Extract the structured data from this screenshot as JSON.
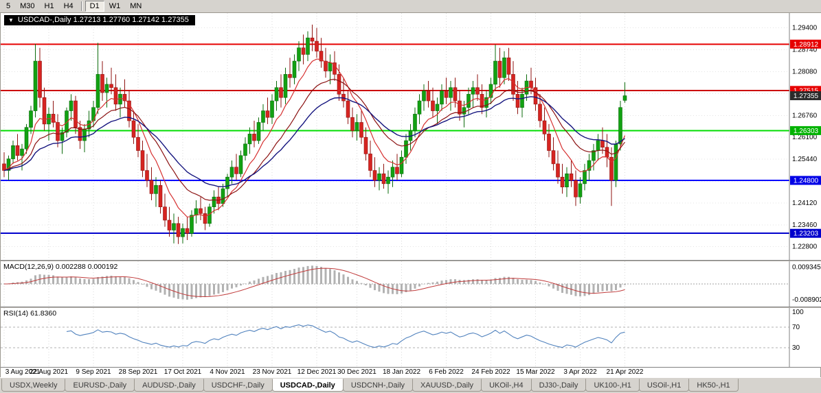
{
  "toolbar": {
    "timeframes": [
      {
        "label": "5",
        "active": false,
        "sep_after": false
      },
      {
        "label": "M30",
        "active": false,
        "sep_after": false
      },
      {
        "label": "H1",
        "active": false,
        "sep_after": false
      },
      {
        "label": "H4",
        "active": false,
        "sep_after": true
      },
      {
        "label": "D1",
        "active": true,
        "sep_after": false
      },
      {
        "label": "W1",
        "active": false,
        "sep_after": false
      },
      {
        "label": "MN",
        "active": false,
        "sep_after": false
      }
    ]
  },
  "chart_title": "USDCAD-,Daily 1.27213 1.27760 1.27142 1.27355",
  "collapse_arrow": "▼",
  "price_axis": {
    "labels": [
      "1.29400",
      "1.28740",
      "1.28080",
      "1.27420",
      "1.26760",
      "1.26100",
      "1.25440",
      "1.24780",
      "1.24120",
      "1.23460",
      "1.22800"
    ],
    "badges": [
      {
        "value": "1.28912",
        "price": 1.28912,
        "color": "#e60000",
        "text": "#ffffff"
      },
      {
        "value": "1.27515",
        "price": 1.27515,
        "color": "#e60000",
        "text": "#ffffff"
      },
      {
        "value": "1.27355",
        "price": 1.27355,
        "color": "#2b2b2b",
        "text": "#ffffff"
      },
      {
        "value": "1.26303",
        "price": 1.26303,
        "color": "#00b300",
        "text": "#ffffff"
      },
      {
        "value": "1.24800",
        "price": 1.248,
        "color": "#0000e6",
        "text": "#ffffff"
      },
      {
        "value": "1.23203",
        "price": 1.23203,
        "color": "#0000cc",
        "text": "#ffffff"
      }
    ]
  },
  "chart_data": {
    "type": "candlestick",
    "symbol": "USDCAD-",
    "timeframe": "Daily",
    "ohlc_display": {
      "open": "1.27213",
      "high": "1.27760",
      "low": "1.27142",
      "close": "1.27355"
    },
    "price_range": [
      1.224,
      1.2985
    ],
    "hlines": [
      {
        "price": 1.28912,
        "color": "#e60000",
        "width": 2
      },
      {
        "price": 1.27515,
        "color": "#cc0000",
        "width": 2
      },
      {
        "price": 1.26303,
        "color": "#00dd00",
        "width": 2
      },
      {
        "price": 1.248,
        "color": "#0000ff",
        "width": 2
      },
      {
        "price": 1.23203,
        "color": "#0000cd",
        "width": 2
      }
    ],
    "x_labels": [
      "3 Aug 2021",
      "22 Aug 2021",
      "9 Sep 2021",
      "28 Sep 2021",
      "17 Oct 2021",
      "4 Nov 2021",
      "23 Nov 2021",
      "12 Dec 2021",
      "30 Dec 2021",
      "18 Jan 2022",
      "6 Feb 2022",
      "24 Feb 2022",
      "15 Mar 2022",
      "3 Apr 2022",
      "21 Apr 2022"
    ],
    "candles": [
      [
        1.253,
        1.2565,
        1.249,
        1.251
      ],
      [
        1.251,
        1.2555,
        1.248,
        1.2545
      ],
      [
        1.2545,
        1.26,
        1.253,
        1.2585
      ],
      [
        1.2585,
        1.262,
        1.254,
        1.2555
      ],
      [
        1.2555,
        1.259,
        1.251,
        1.2575
      ],
      [
        1.2575,
        1.265,
        1.256,
        1.264
      ],
      [
        1.264,
        1.2705,
        1.262,
        1.269
      ],
      [
        1.269,
        1.2892,
        1.267,
        1.284
      ],
      [
        1.284,
        1.288,
        1.27,
        1.273
      ],
      [
        1.273,
        1.276,
        1.263,
        1.265
      ],
      [
        1.265,
        1.27,
        1.26,
        1.268
      ],
      [
        1.268,
        1.272,
        1.264,
        1.2655
      ],
      [
        1.2655,
        1.268,
        1.258,
        1.26
      ],
      [
        1.26,
        1.264,
        1.256,
        1.2625
      ],
      [
        1.2625,
        1.27,
        1.261,
        1.269
      ],
      [
        1.269,
        1.274,
        1.266,
        1.272
      ],
      [
        1.272,
        1.2735,
        1.262,
        1.264
      ],
      [
        1.264,
        1.266,
        1.2575,
        1.26
      ],
      [
        1.26,
        1.265,
        1.2565,
        1.2635
      ],
      [
        1.2635,
        1.269,
        1.261,
        1.266
      ],
      [
        1.266,
        1.272,
        1.264,
        1.27
      ],
      [
        1.27,
        1.2895,
        1.268,
        1.28
      ],
      [
        1.28,
        1.284,
        1.272,
        1.2745
      ],
      [
        1.2745,
        1.279,
        1.27,
        1.277
      ],
      [
        1.277,
        1.282,
        1.274,
        1.276
      ],
      [
        1.276,
        1.28,
        1.269,
        1.271
      ],
      [
        1.271,
        1.276,
        1.267,
        1.274
      ],
      [
        1.274,
        1.2785,
        1.27,
        1.272
      ],
      [
        1.272,
        1.275,
        1.264,
        1.266
      ],
      [
        1.266,
        1.269,
        1.259,
        1.261
      ],
      [
        1.261,
        1.265,
        1.255,
        1.257
      ],
      [
        1.257,
        1.26,
        1.249,
        1.251
      ],
      [
        1.251,
        1.256,
        1.246,
        1.248
      ],
      [
        1.248,
        1.252,
        1.242,
        1.244
      ],
      [
        1.244,
        1.249,
        1.24,
        1.2465
      ],
      [
        1.2465,
        1.248,
        1.238,
        1.24
      ],
      [
        1.24,
        1.244,
        1.234,
        1.236
      ],
      [
        1.236,
        1.24,
        1.231,
        1.233
      ],
      [
        1.233,
        1.238,
        1.229,
        1.235
      ],
      [
        1.235,
        1.237,
        1.2288,
        1.231
      ],
      [
        1.231,
        1.235,
        1.229,
        1.2335
      ],
      [
        1.2335,
        1.237,
        1.23,
        1.232
      ],
      [
        1.232,
        1.239,
        1.231,
        1.2375
      ],
      [
        1.2375,
        1.242,
        1.235,
        1.2395
      ],
      [
        1.2395,
        1.243,
        1.236,
        1.238
      ],
      [
        1.238,
        1.24,
        1.233,
        1.235
      ],
      [
        1.235,
        1.241,
        1.234,
        1.24
      ],
      [
        1.24,
        1.245,
        1.238,
        1.243
      ],
      [
        1.243,
        1.246,
        1.239,
        1.241
      ],
      [
        1.241,
        1.247,
        1.24,
        1.2455
      ],
      [
        1.2455,
        1.25,
        1.243,
        1.249
      ],
      [
        1.249,
        1.254,
        1.247,
        1.252
      ],
      [
        1.252,
        1.256,
        1.248,
        1.25
      ],
      [
        1.25,
        1.257,
        1.249,
        1.2555
      ],
      [
        1.2555,
        1.261,
        1.254,
        1.259
      ],
      [
        1.259,
        1.264,
        1.256,
        1.262
      ],
      [
        1.262,
        1.266,
        1.258,
        1.26
      ],
      [
        1.26,
        1.267,
        1.259,
        1.2655
      ],
      [
        1.2655,
        1.271,
        1.263,
        1.269
      ],
      [
        1.269,
        1.273,
        1.265,
        1.267
      ],
      [
        1.267,
        1.274,
        1.265,
        1.272
      ],
      [
        1.272,
        1.278,
        1.269,
        1.276
      ],
      [
        1.276,
        1.28,
        1.27,
        1.273
      ],
      [
        1.273,
        1.282,
        1.271,
        1.28
      ],
      [
        1.28,
        1.285,
        1.276,
        1.279
      ],
      [
        1.279,
        1.286,
        1.277,
        1.284
      ],
      [
        1.284,
        1.29,
        1.281,
        1.288
      ],
      [
        1.288,
        1.292,
        1.283,
        1.286
      ],
      [
        1.286,
        1.293,
        1.284,
        1.291
      ],
      [
        1.291,
        1.295,
        1.287,
        1.29
      ],
      [
        1.29,
        1.294,
        1.285,
        1.287
      ],
      [
        1.287,
        1.291,
        1.282,
        1.284
      ],
      [
        1.284,
        1.288,
        1.279,
        1.281
      ],
      [
        1.281,
        1.286,
        1.277,
        1.2835
      ],
      [
        1.2835,
        1.287,
        1.278,
        1.28
      ],
      [
        1.28,
        1.283,
        1.272,
        1.274
      ],
      [
        1.274,
        1.279,
        1.27,
        1.272
      ],
      [
        1.272,
        1.275,
        1.265,
        1.267
      ],
      [
        1.267,
        1.27,
        1.261,
        1.263
      ],
      [
        1.263,
        1.268,
        1.26,
        1.2655
      ],
      [
        1.2655,
        1.269,
        1.259,
        1.261
      ],
      [
        1.261,
        1.264,
        1.254,
        1.256
      ],
      [
        1.256,
        1.26,
        1.249,
        1.251
      ],
      [
        1.251,
        1.255,
        1.246,
        1.248
      ],
      [
        1.248,
        1.252,
        1.245,
        1.25
      ],
      [
        1.25,
        1.253,
        1.2455,
        1.247
      ],
      [
        1.247,
        1.251,
        1.244,
        1.249
      ],
      [
        1.249,
        1.254,
        1.246,
        1.252
      ],
      [
        1.252,
        1.256,
        1.248,
        1.25
      ],
      [
        1.25,
        1.257,
        1.249,
        1.255
      ],
      [
        1.255,
        1.262,
        1.253,
        1.26
      ],
      [
        1.26,
        1.265,
        1.257,
        1.263
      ],
      [
        1.263,
        1.27,
        1.261,
        1.268
      ],
      [
        1.268,
        1.274,
        1.265,
        1.272
      ],
      [
        1.272,
        1.277,
        1.269,
        1.275
      ],
      [
        1.275,
        1.278,
        1.27,
        1.272
      ],
      [
        1.272,
        1.276,
        1.267,
        1.269
      ],
      [
        1.269,
        1.273,
        1.265,
        1.271
      ],
      [
        1.271,
        1.277,
        1.269,
        1.275
      ],
      [
        1.275,
        1.279,
        1.271,
        1.273
      ],
      [
        1.273,
        1.278,
        1.269,
        1.276
      ],
      [
        1.276,
        1.279,
        1.27,
        1.272
      ],
      [
        1.272,
        1.275,
        1.266,
        1.268
      ],
      [
        1.268,
        1.272,
        1.264,
        1.27
      ],
      [
        1.27,
        1.276,
        1.268,
        1.274
      ],
      [
        1.274,
        1.278,
        1.27,
        1.276
      ],
      [
        1.276,
        1.28,
        1.272,
        1.274
      ],
      [
        1.274,
        1.277,
        1.268,
        1.27
      ],
      [
        1.27,
        1.275,
        1.267,
        1.273
      ],
      [
        1.273,
        1.279,
        1.271,
        1.277
      ],
      [
        1.277,
        1.289,
        1.275,
        1.284
      ],
      [
        1.284,
        1.288,
        1.276,
        1.279
      ],
      [
        1.279,
        1.287,
        1.277,
        1.285
      ],
      [
        1.285,
        1.288,
        1.278,
        1.28
      ],
      [
        1.28,
        1.284,
        1.272,
        1.274
      ],
      [
        1.274,
        1.278,
        1.268,
        1.27
      ],
      [
        1.27,
        1.276,
        1.267,
        1.274
      ],
      [
        1.274,
        1.28,
        1.272,
        1.278
      ],
      [
        1.278,
        1.282,
        1.274,
        1.276
      ],
      [
        1.276,
        1.279,
        1.269,
        1.271
      ],
      [
        1.271,
        1.274,
        1.264,
        1.266
      ],
      [
        1.266,
        1.27,
        1.26,
        1.262
      ],
      [
        1.262,
        1.265,
        1.255,
        1.257
      ],
      [
        1.257,
        1.261,
        1.251,
        1.253
      ],
      [
        1.253,
        1.257,
        1.247,
        1.249
      ],
      [
        1.249,
        1.253,
        1.244,
        1.246
      ],
      [
        1.246,
        1.252,
        1.243,
        1.25
      ],
      [
        1.25,
        1.254,
        1.246,
        1.248
      ],
      [
        1.248,
        1.251,
        1.2403,
        1.243
      ],
      [
        1.243,
        1.249,
        1.241,
        1.247
      ],
      [
        1.247,
        1.253,
        1.245,
        1.251
      ],
      [
        1.251,
        1.256,
        1.248,
        1.254
      ],
      [
        1.254,
        1.259,
        1.251,
        1.257
      ],
      [
        1.257,
        1.262,
        1.254,
        1.26
      ],
      [
        1.26,
        1.264,
        1.256,
        1.258
      ],
      [
        1.258,
        1.262,
        1.252,
        1.255
      ],
      [
        1.255,
        1.258,
        1.2403,
        1.248
      ],
      [
        1.248,
        1.26,
        1.246,
        1.259
      ],
      [
        1.259,
        1.272,
        1.257,
        1.27
      ],
      [
        1.27213,
        1.2776,
        1.27142,
        1.27355
      ]
    ],
    "indicators": {
      "macd": {
        "label": "MACD(12,26,9)",
        "values_text": "0.002288 0.000192",
        "axis_max": "0.009345",
        "axis_min": "-0.008902"
      },
      "rsi": {
        "label": "RSI(14)",
        "value_text": "61.8360",
        "levels": [
          "100",
          "70",
          "30"
        ]
      }
    }
  },
  "tabs": [
    {
      "label": "USDX,Weekly",
      "active": false
    },
    {
      "label": "EURUSD-,Daily",
      "active": false
    },
    {
      "label": "AUDUSD-,Daily",
      "active": false
    },
    {
      "label": "USDCHF-,Daily",
      "active": false
    },
    {
      "label": "USDCAD-,Daily",
      "active": true
    },
    {
      "label": "USDCNH-,Daily",
      "active": false
    },
    {
      "label": "XAUUSD-,Daily",
      "active": false
    },
    {
      "label": "UKOil-,H4",
      "active": false
    },
    {
      "label": "DJ30-,Daily",
      "active": false
    },
    {
      "label": "UK100-,H1",
      "active": false
    },
    {
      "label": "USOil-,H1",
      "active": false
    },
    {
      "label": "HK50-,H1",
      "active": false
    }
  ]
}
